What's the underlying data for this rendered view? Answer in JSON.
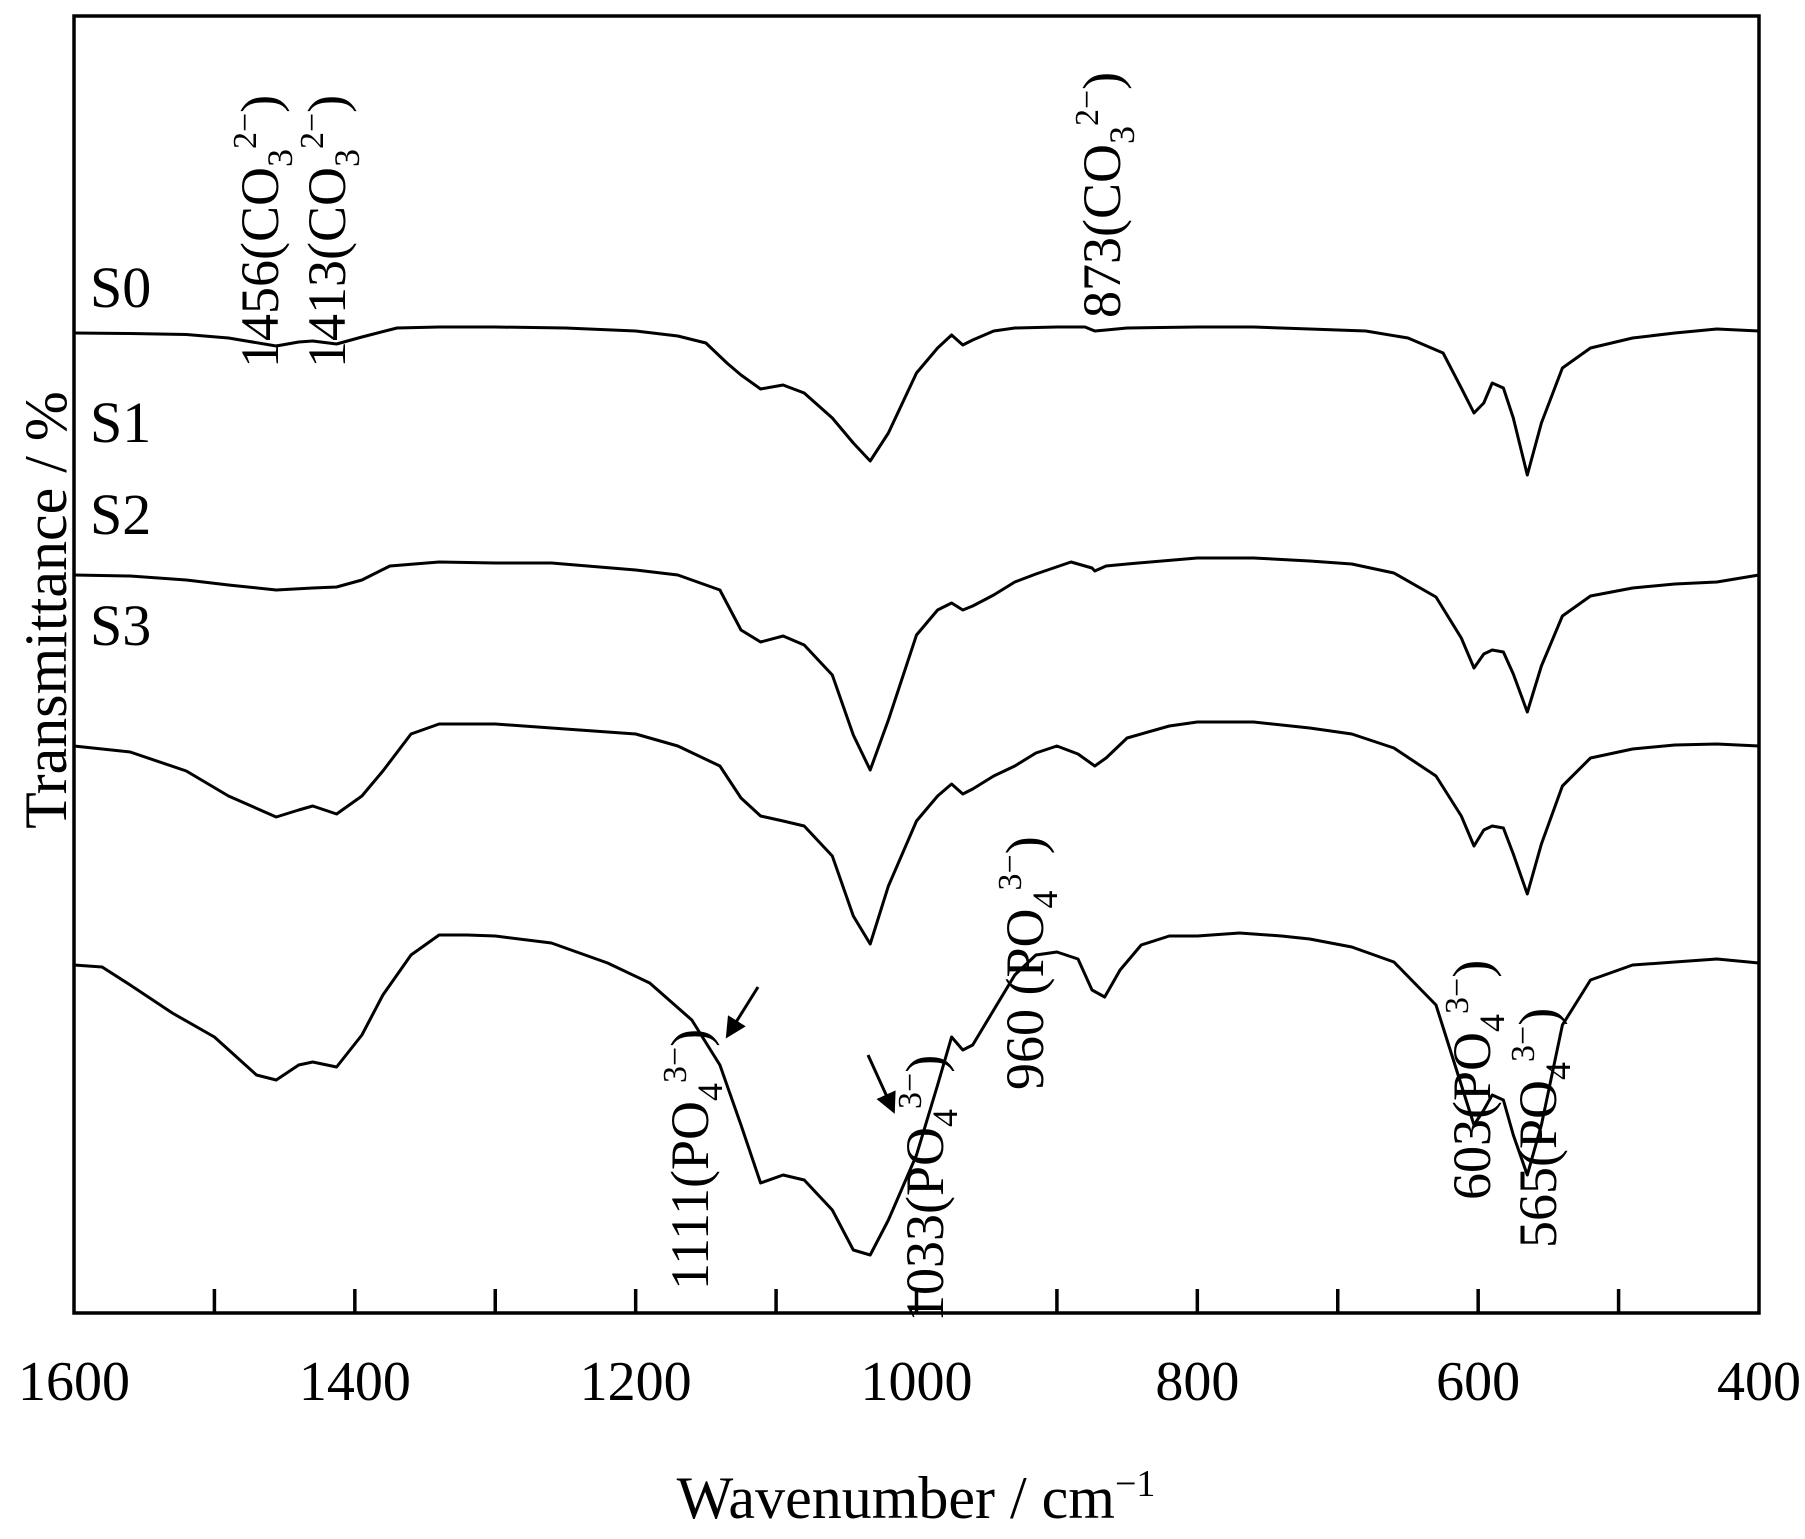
{
  "chart_data": {
    "type": "line",
    "xlabel": "Wavenumber / cm",
    "xlabel_superscript": "−1",
    "ylabel": "Transmittance  / %",
    "xlim": [
      1600,
      400
    ],
    "x_reversed": true,
    "y_ticks_shown": false,
    "grid": false,
    "x_ticks": [
      "1600",
      "1400",
      "1200",
      "1000",
      "800",
      "600",
      "400"
    ],
    "minor_ticks": [
      1500,
      1300,
      1100,
      900,
      700,
      500
    ],
    "series": [
      {
        "name": "S0",
        "points": [
          [
            1600,
            0.0
          ],
          [
            1560,
            -0.5
          ],
          [
            1520,
            -1.5
          ],
          [
            1490,
            -5
          ],
          [
            1456,
            -13
          ],
          [
            1440,
            -9
          ],
          [
            1430,
            -8
          ],
          [
            1413,
            -11
          ],
          [
            1395,
            -4
          ],
          [
            1370,
            5
          ],
          [
            1340,
            6
          ],
          [
            1300,
            6
          ],
          [
            1250,
            5
          ],
          [
            1200,
            2
          ],
          [
            1170,
            -3
          ],
          [
            1150,
            -10
          ],
          [
            1135,
            -30
          ],
          [
            1125,
            -42
          ],
          [
            1111,
            -56
          ],
          [
            1095,
            -52
          ],
          [
            1080,
            -60
          ],
          [
            1060,
            -85
          ],
          [
            1045,
            -110
          ],
          [
            1033,
            -128
          ],
          [
            1020,
            -100
          ],
          [
            1000,
            -40
          ],
          [
            985,
            -15
          ],
          [
            975,
            -2
          ],
          [
            967,
            -12
          ],
          [
            960,
            -7
          ],
          [
            945,
            2
          ],
          [
            930,
            5
          ],
          [
            900,
            6
          ],
          [
            880,
            6
          ],
          [
            873,
            2
          ],
          [
            865,
            3
          ],
          [
            850,
            5
          ],
          [
            800,
            6
          ],
          [
            760,
            6
          ],
          [
            720,
            4
          ],
          [
            680,
            2
          ],
          [
            650,
            -5
          ],
          [
            625,
            -20
          ],
          [
            612,
            -55
          ],
          [
            603,
            -80
          ],
          [
            596,
            -70
          ],
          [
            590,
            -50
          ],
          [
            582,
            -55
          ],
          [
            575,
            -85
          ],
          [
            565,
            -142
          ],
          [
            555,
            -90
          ],
          [
            540,
            -35
          ],
          [
            520,
            -15
          ],
          [
            490,
            -5
          ],
          [
            460,
            0
          ],
          [
            430,
            4
          ],
          [
            400,
            2
          ]
        ]
      },
      {
        "name": "S1",
        "points": [
          [
            1600,
            -105
          ],
          [
            1560,
            -106
          ],
          [
            1520,
            -110
          ],
          [
            1490,
            -115
          ],
          [
            1456,
            -120
          ],
          [
            1430,
            -118
          ],
          [
            1413,
            -117
          ],
          [
            1395,
            -110
          ],
          [
            1375,
            -96
          ],
          [
            1340,
            -92
          ],
          [
            1300,
            -93
          ],
          [
            1260,
            -93
          ],
          [
            1200,
            -100
          ],
          [
            1170,
            -105
          ],
          [
            1140,
            -120
          ],
          [
            1125,
            -160
          ],
          [
            1111,
            -172
          ],
          [
            1095,
            -166
          ],
          [
            1080,
            -175
          ],
          [
            1060,
            -205
          ],
          [
            1045,
            -265
          ],
          [
            1033,
            -300
          ],
          [
            1020,
            -250
          ],
          [
            1000,
            -165
          ],
          [
            985,
            -140
          ],
          [
            975,
            -133
          ],
          [
            967,
            -140
          ],
          [
            960,
            -136
          ],
          [
            945,
            -125
          ],
          [
            930,
            -112
          ],
          [
            915,
            -104
          ],
          [
            890,
            -92
          ],
          [
            875,
            -98
          ],
          [
            873,
            -101
          ],
          [
            865,
            -96
          ],
          [
            850,
            -94
          ],
          [
            800,
            -88
          ],
          [
            760,
            -88
          ],
          [
            720,
            -91
          ],
          [
            690,
            -94
          ],
          [
            660,
            -103
          ],
          [
            630,
            -127
          ],
          [
            612,
            -168
          ],
          [
            603,
            -198
          ],
          [
            596,
            -184
          ],
          [
            590,
            -180
          ],
          [
            582,
            -182
          ],
          [
            575,
            -204
          ],
          [
            565,
            -242
          ],
          [
            555,
            -196
          ],
          [
            540,
            -146
          ],
          [
            520,
            -126
          ],
          [
            490,
            -118
          ],
          [
            460,
            -114
          ],
          [
            430,
            -112
          ],
          [
            400,
            -105
          ]
        ]
      },
      {
        "name": "S2",
        "points": [
          [
            1600,
            -190
          ],
          [
            1560,
            -196
          ],
          [
            1520,
            -215
          ],
          [
            1490,
            -240
          ],
          [
            1456,
            -261
          ],
          [
            1440,
            -254
          ],
          [
            1430,
            -250
          ],
          [
            1413,
            -258
          ],
          [
            1395,
            -240
          ],
          [
            1380,
            -215
          ],
          [
            1360,
            -178
          ],
          [
            1340,
            -168
          ],
          [
            1300,
            -168
          ],
          [
            1260,
            -172
          ],
          [
            1200,
            -178
          ],
          [
            1170,
            -190
          ],
          [
            1140,
            -210
          ],
          [
            1125,
            -242
          ],
          [
            1111,
            -260
          ],
          [
            1095,
            -265
          ],
          [
            1080,
            -270
          ],
          [
            1060,
            -300
          ],
          [
            1045,
            -360
          ],
          [
            1033,
            -388
          ],
          [
            1020,
            -330
          ],
          [
            1000,
            -265
          ],
          [
            985,
            -240
          ],
          [
            975,
            -228
          ],
          [
            967,
            -238
          ],
          [
            960,
            -233
          ],
          [
            945,
            -220
          ],
          [
            930,
            -210
          ],
          [
            915,
            -197
          ],
          [
            900,
            -190
          ],
          [
            885,
            -198
          ],
          [
            873,
            -210
          ],
          [
            865,
            -202
          ],
          [
            850,
            -182
          ],
          [
            820,
            -170
          ],
          [
            800,
            -166
          ],
          [
            760,
            -166
          ],
          [
            720,
            -172
          ],
          [
            690,
            -178
          ],
          [
            660,
            -192
          ],
          [
            630,
            -220
          ],
          [
            612,
            -260
          ],
          [
            603,
            -290
          ],
          [
            596,
            -274
          ],
          [
            590,
            -270
          ],
          [
            582,
            -272
          ],
          [
            575,
            -298
          ],
          [
            565,
            -338
          ],
          [
            555,
            -288
          ],
          [
            540,
            -230
          ],
          [
            520,
            -202
          ],
          [
            490,
            -193
          ],
          [
            460,
            -189
          ],
          [
            430,
            -188
          ],
          [
            400,
            -190
          ]
        ]
      },
      {
        "name": "S3",
        "points": [
          [
            1600,
            -300
          ],
          [
            1580,
            -302
          ],
          [
            1560,
            -320
          ],
          [
            1530,
            -348
          ],
          [
            1500,
            -372
          ],
          [
            1470,
            -410
          ],
          [
            1456,
            -415
          ],
          [
            1440,
            -400
          ],
          [
            1430,
            -397
          ],
          [
            1413,
            -402
          ],
          [
            1395,
            -370
          ],
          [
            1380,
            -330
          ],
          [
            1360,
            -290
          ],
          [
            1340,
            -270
          ],
          [
            1320,
            -270
          ],
          [
            1300,
            -271
          ],
          [
            1260,
            -278
          ],
          [
            1220,
            -298
          ],
          [
            1190,
            -318
          ],
          [
            1160,
            -355
          ],
          [
            1140,
            -400
          ],
          [
            1125,
            -460
          ],
          [
            1111,
            -518
          ],
          [
            1095,
            -510
          ],
          [
            1080,
            -515
          ],
          [
            1060,
            -545
          ],
          [
            1045,
            -585
          ],
          [
            1033,
            -590
          ],
          [
            1020,
            -555
          ],
          [
            1000,
            -490
          ],
          [
            985,
            -420
          ],
          [
            975,
            -372
          ],
          [
            967,
            -385
          ],
          [
            960,
            -380
          ],
          [
            945,
            -345
          ],
          [
            930,
            -310
          ],
          [
            915,
            -290
          ],
          [
            900,
            -287
          ],
          [
            885,
            -294
          ],
          [
            875,
            -325
          ],
          [
            866,
            -332
          ],
          [
            855,
            -305
          ],
          [
            840,
            -280
          ],
          [
            820,
            -271
          ],
          [
            800,
            -271
          ],
          [
            770,
            -268
          ],
          [
            740,
            -271
          ],
          [
            720,
            -274
          ],
          [
            690,
            -282
          ],
          [
            660,
            -297
          ],
          [
            630,
            -340
          ],
          [
            612,
            -420
          ],
          [
            603,
            -460
          ],
          [
            596,
            -445
          ],
          [
            590,
            -430
          ],
          [
            582,
            -435
          ],
          [
            575,
            -470
          ],
          [
            565,
            -510
          ],
          [
            555,
            -460
          ],
          [
            540,
            -360
          ],
          [
            520,
            -315
          ],
          [
            490,
            -300
          ],
          [
            460,
            -297
          ],
          [
            430,
            -294
          ],
          [
            400,
            -298
          ]
        ]
      }
    ],
    "annotations": [
      {
        "text": "1456(CO",
        "sub": "3",
        "sup": "2−",
        "close": ")"
      },
      {
        "text": "1413(CO",
        "sub": "3",
        "sup": "2−",
        "close": ")"
      },
      {
        "text": "873(CO",
        "sub": "3",
        "sup": "2−",
        "close": ")"
      },
      {
        "text": "960 (PO",
        "sub": "4",
        "sup": "3−",
        "close": ")"
      },
      {
        "text": "1111(PO",
        "sub": "4",
        "sup": "3−",
        "close": ")"
      },
      {
        "text": "1033(PO",
        "sub": "4",
        "sup": "3−",
        "close": ")"
      },
      {
        "text": "603(PO",
        "sub": "4",
        "sup": "3−",
        "close": ")"
      },
      {
        "text": "565(PO",
        "sub": "4",
        "sup": "3−",
        "close": ")"
      }
    ]
  }
}
